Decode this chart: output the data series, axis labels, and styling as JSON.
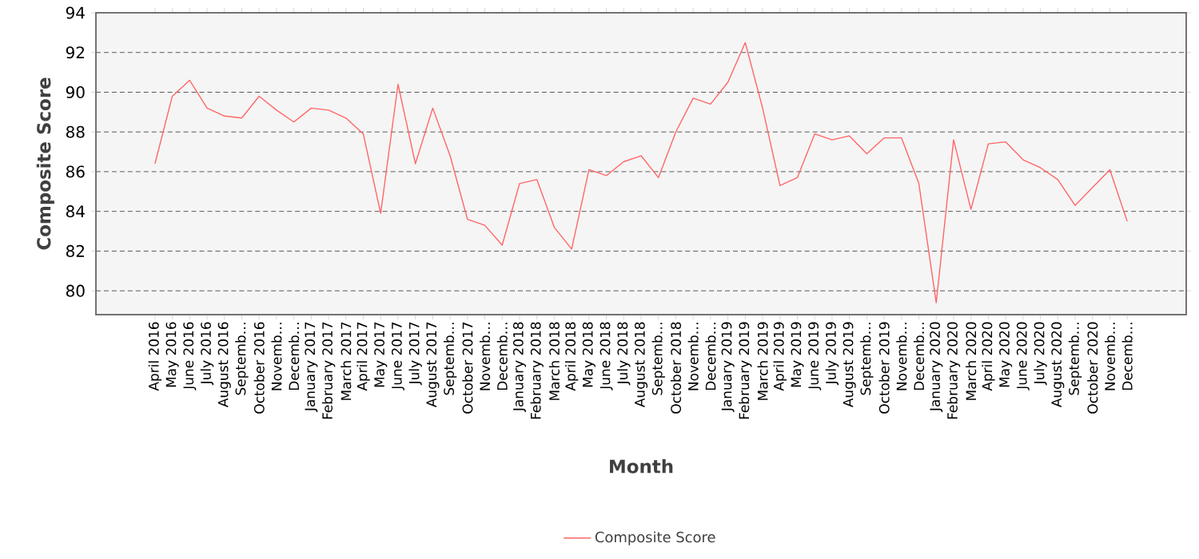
{
  "chart_data": {
    "type": "line",
    "xlabel": "Month",
    "ylabel": "Composite Score",
    "categories": [
      "April 2016",
      "May 2016",
      "June 2016",
      "July 2016",
      "August 2016",
      "Septemb…",
      "October 2016",
      "Novemb…",
      "Decemb…",
      "January 2017",
      "February 2017",
      "March 2017",
      "April 2017",
      "May 2017",
      "June 2017",
      "July 2017",
      "August 2017",
      "Septemb…",
      "October 2017",
      "Novemb…",
      "Decemb…",
      "January 2018",
      "February 2018",
      "March 2018",
      "April 2018",
      "May 2018",
      "June 2018",
      "July 2018",
      "August 2018",
      "Septemb…",
      "October 2018",
      "Novemb…",
      "Decemb…",
      "January 2019",
      "February 2019",
      "March 2019",
      "April 2019",
      "May 2019",
      "June 2019",
      "July 2019",
      "August 2019",
      "Septemb…",
      "October 2019",
      "Novemb…",
      "Decemb…",
      "January 2020",
      "February 2020",
      "March 2020",
      "April 2020",
      "May 2020",
      "June 2020",
      "July 2020",
      "August 2020",
      "Septemb…",
      "October 2020",
      "Novemb…",
      "Decemb…"
    ],
    "series": [
      {
        "name": "Composite Score",
        "color": "#ff6666",
        "values": [
          86.4,
          89.8,
          90.6,
          89.2,
          88.8,
          88.7,
          89.8,
          89.1,
          88.5,
          89.2,
          89.1,
          88.7,
          87.9,
          83.9,
          90.4,
          86.4,
          89.2,
          86.8,
          83.6,
          83.3,
          82.3,
          85.4,
          85.6,
          83.2,
          82.1,
          86.1,
          85.8,
          86.5,
          86.8,
          85.7,
          88.0,
          89.7,
          89.4,
          90.5,
          92.5,
          89.2,
          85.3,
          85.7,
          87.9,
          87.6,
          87.8,
          86.9,
          87.7,
          87.7,
          85.4,
          79.4,
          87.6,
          84.1,
          87.4,
          87.5,
          86.6,
          86.2,
          85.6,
          84.3,
          85.2,
          86.1,
          83.5
        ]
      }
    ],
    "ylim": [
      78.8,
      94
    ],
    "yticks": [
      80,
      82,
      84,
      86,
      88,
      90,
      92,
      94
    ],
    "grid": "y",
    "legend": "bottom",
    "marker": "none",
    "line_style": "solid"
  }
}
